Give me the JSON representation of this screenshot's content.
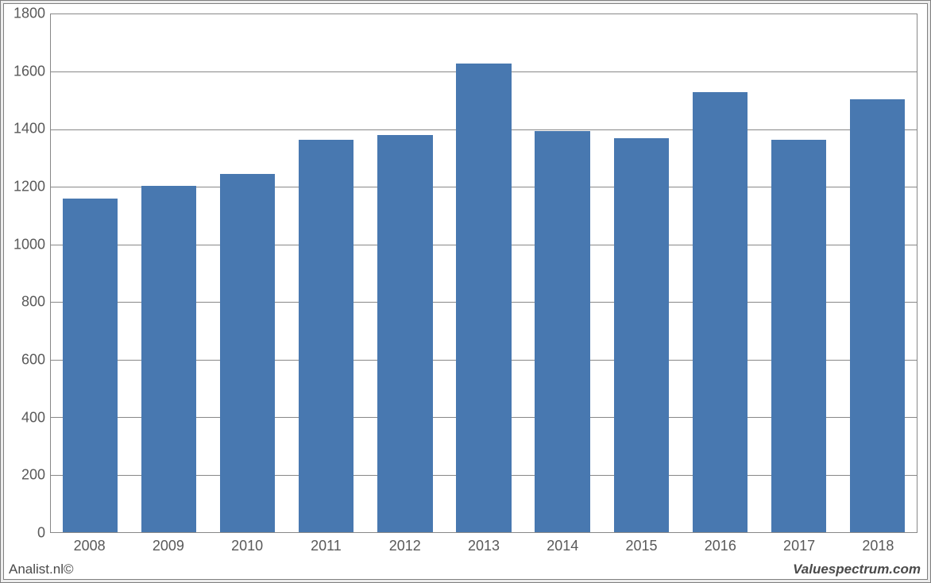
{
  "chart": {
    "type": "bar",
    "categories": [
      "2008",
      "2009",
      "2010",
      "2011",
      "2012",
      "2013",
      "2014",
      "2015",
      "2016",
      "2017",
      "2018"
    ],
    "values": [
      1160,
      1205,
      1245,
      1365,
      1380,
      1630,
      1395,
      1370,
      1530,
      1365,
      1505
    ],
    "bar_color": "#4878b0",
    "ylim": [
      0,
      1800
    ],
    "ytick_step": 200,
    "yticks": [
      0,
      200,
      400,
      600,
      800,
      1000,
      1200,
      1400,
      1600,
      1800
    ],
    "grid_color": "#888888",
    "plot_border_color": "#888888",
    "background_color": "#ffffff",
    "outer_background_color": "#ececec",
    "tick_label_color": "#595959",
    "tick_fontsize": 18,
    "bar_width_ratio": 0.7
  },
  "footer": {
    "left": "Analist.nl©",
    "right": "Valuespectrum.com"
  }
}
